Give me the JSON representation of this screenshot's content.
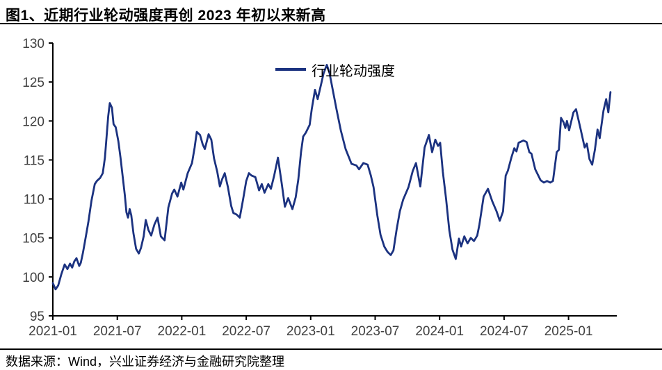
{
  "title": "图1、近期行业轮动强度再创 2023 年初以来新高",
  "source_note": "数据来源：Wind，兴业证券经济与金融研究院整理",
  "colors": {
    "series_line": "#1B3280",
    "axis": "#000000",
    "axis_label": "#404040",
    "divider": "#000000"
  },
  "chart_data": {
    "type": "line",
    "title": "",
    "xlabel": "",
    "ylabel": "",
    "legend_position": "top-center",
    "grid": false,
    "ylim": [
      95,
      130
    ],
    "y_ticks": [
      95,
      100,
      105,
      110,
      115,
      120,
      125,
      130
    ],
    "x_unit": "months_since_2021_01",
    "xlim": [
      0,
      52.5
    ],
    "x_ticks": [
      {
        "m": 0,
        "label": "2021-01"
      },
      {
        "m": 6,
        "label": "2021-07"
      },
      {
        "m": 12,
        "label": "2022-01"
      },
      {
        "m": 18,
        "label": "2022-07"
      },
      {
        "m": 24,
        "label": "2023-01"
      },
      {
        "m": 30,
        "label": "2023-07"
      },
      {
        "m": 36,
        "label": "2024-01"
      },
      {
        "m": 42,
        "label": "2024-07"
      },
      {
        "m": 48,
        "label": "2025-01"
      }
    ],
    "series": [
      {
        "name": "行业轮动强度",
        "color": "#1B3280",
        "points": [
          [
            0,
            99.2
          ],
          [
            0.25,
            98.4
          ],
          [
            0.5,
            98.9
          ],
          [
            0.8,
            100.4
          ],
          [
            1.1,
            101.6
          ],
          [
            1.35,
            101.0
          ],
          [
            1.6,
            101.7
          ],
          [
            1.8,
            101.2
          ],
          [
            2.0,
            102.0
          ],
          [
            2.2,
            102.4
          ],
          [
            2.45,
            101.4
          ],
          [
            2.6,
            101.8
          ],
          [
            2.8,
            103.1
          ],
          [
            3.0,
            104.6
          ],
          [
            3.3,
            107.0
          ],
          [
            3.6,
            109.8
          ],
          [
            3.9,
            111.9
          ],
          [
            4.1,
            112.3
          ],
          [
            4.4,
            112.7
          ],
          [
            4.65,
            113.3
          ],
          [
            4.85,
            115.3
          ],
          [
            5.0,
            118.0
          ],
          [
            5.15,
            120.6
          ],
          [
            5.3,
            122.3
          ],
          [
            5.5,
            121.7
          ],
          [
            5.65,
            119.6
          ],
          [
            5.85,
            119.2
          ],
          [
            6.1,
            117.4
          ],
          [
            6.3,
            115.3
          ],
          [
            6.5,
            112.9
          ],
          [
            6.7,
            110.5
          ],
          [
            6.85,
            108.3
          ],
          [
            7.0,
            107.6
          ],
          [
            7.15,
            108.7
          ],
          [
            7.3,
            107.9
          ],
          [
            7.5,
            105.6
          ],
          [
            7.75,
            103.6
          ],
          [
            8.0,
            103.0
          ],
          [
            8.2,
            103.7
          ],
          [
            8.45,
            105.2
          ],
          [
            8.65,
            107.3
          ],
          [
            8.9,
            106.0
          ],
          [
            9.15,
            105.3
          ],
          [
            9.45,
            106.7
          ],
          [
            9.75,
            107.6
          ],
          [
            10.05,
            105.2
          ],
          [
            10.4,
            104.7
          ],
          [
            10.75,
            108.9
          ],
          [
            11.1,
            110.7
          ],
          [
            11.3,
            111.2
          ],
          [
            11.6,
            110.3
          ],
          [
            11.95,
            112.1
          ],
          [
            12.15,
            111.2
          ],
          [
            12.55,
            113.3
          ],
          [
            12.95,
            114.6
          ],
          [
            13.2,
            116.6
          ],
          [
            13.4,
            118.6
          ],
          [
            13.7,
            118.2
          ],
          [
            13.95,
            117.0
          ],
          [
            14.15,
            116.4
          ],
          [
            14.5,
            118.3
          ],
          [
            14.75,
            117.6
          ],
          [
            15.0,
            115.2
          ],
          [
            15.3,
            113.5
          ],
          [
            15.55,
            111.6
          ],
          [
            15.75,
            112.5
          ],
          [
            16.0,
            113.3
          ],
          [
            16.3,
            111.5
          ],
          [
            16.6,
            109.1
          ],
          [
            16.8,
            108.2
          ],
          [
            17.1,
            108.0
          ],
          [
            17.4,
            107.6
          ],
          [
            17.7,
            109.9
          ],
          [
            18.0,
            112.3
          ],
          [
            18.25,
            113.3
          ],
          [
            18.5,
            113.0
          ],
          [
            18.85,
            112.8
          ],
          [
            19.2,
            111.1
          ],
          [
            19.45,
            111.9
          ],
          [
            19.7,
            110.8
          ],
          [
            20.05,
            111.9
          ],
          [
            20.3,
            111.3
          ],
          [
            20.6,
            113.0
          ],
          [
            20.95,
            115.3
          ],
          [
            21.3,
            112.0
          ],
          [
            21.6,
            109.0
          ],
          [
            21.9,
            110.1
          ],
          [
            22.3,
            108.7
          ],
          [
            22.6,
            110.2
          ],
          [
            22.85,
            112.5
          ],
          [
            23.1,
            116.0
          ],
          [
            23.3,
            118.0
          ],
          [
            23.55,
            118.5
          ],
          [
            23.9,
            119.5
          ],
          [
            24.1,
            121.5
          ],
          [
            24.4,
            124.0
          ],
          [
            24.65,
            122.8
          ],
          [
            24.95,
            124.6
          ],
          [
            25.2,
            126.1
          ],
          [
            25.5,
            127.2
          ],
          [
            25.75,
            126.2
          ],
          [
            26.05,
            124.0
          ],
          [
            26.4,
            121.5
          ],
          [
            26.8,
            118.8
          ],
          [
            27.25,
            116.4
          ],
          [
            27.8,
            114.5
          ],
          [
            28.25,
            114.3
          ],
          [
            28.5,
            113.8
          ],
          [
            28.9,
            114.6
          ],
          [
            29.3,
            114.4
          ],
          [
            29.6,
            113.0
          ],
          [
            29.85,
            111.5
          ],
          [
            30.2,
            107.9
          ],
          [
            30.5,
            105.4
          ],
          [
            30.85,
            103.9
          ],
          [
            31.15,
            103.2
          ],
          [
            31.45,
            102.8
          ],
          [
            31.7,
            103.4
          ],
          [
            32.0,
            106.1
          ],
          [
            32.3,
            108.4
          ],
          [
            32.6,
            109.9
          ],
          [
            33.1,
            111.5
          ],
          [
            33.5,
            113.6
          ],
          [
            33.8,
            114.6
          ],
          [
            34.2,
            111.6
          ],
          [
            34.6,
            116.6
          ],
          [
            35.0,
            118.2
          ],
          [
            35.3,
            116.0
          ],
          [
            35.6,
            117.6
          ],
          [
            35.85,
            116.8
          ],
          [
            36.05,
            117.2
          ],
          [
            36.3,
            113.5
          ],
          [
            36.6,
            110.0
          ],
          [
            36.9,
            106.0
          ],
          [
            37.2,
            103.5
          ],
          [
            37.5,
            102.3
          ],
          [
            37.8,
            104.9
          ],
          [
            38.0,
            103.9
          ],
          [
            38.3,
            105.2
          ],
          [
            38.6,
            104.3
          ],
          [
            38.9,
            105.0
          ],
          [
            39.2,
            104.6
          ],
          [
            39.5,
            105.3
          ],
          [
            39.7,
            106.7
          ],
          [
            40.1,
            110.3
          ],
          [
            40.5,
            111.3
          ],
          [
            40.9,
            109.7
          ],
          [
            41.3,
            108.4
          ],
          [
            41.6,
            107.2
          ],
          [
            41.9,
            108.4
          ],
          [
            42.15,
            113.0
          ],
          [
            42.35,
            113.6
          ],
          [
            42.7,
            115.4
          ],
          [
            42.95,
            116.5
          ],
          [
            43.15,
            116.1
          ],
          [
            43.35,
            117.2
          ],
          [
            43.8,
            117.5
          ],
          [
            44.1,
            117.3
          ],
          [
            44.35,
            116.0
          ],
          [
            44.55,
            115.8
          ],
          [
            44.9,
            113.8
          ],
          [
            45.4,
            112.4
          ],
          [
            45.7,
            112.1
          ],
          [
            46.0,
            112.3
          ],
          [
            46.3,
            112.1
          ],
          [
            46.55,
            112.3
          ],
          [
            46.9,
            116.0
          ],
          [
            47.1,
            116.3
          ],
          [
            47.3,
            120.4
          ],
          [
            47.55,
            119.8
          ],
          [
            47.7,
            119.1
          ],
          [
            47.85,
            120.0
          ],
          [
            48.05,
            118.8
          ],
          [
            48.45,
            121.1
          ],
          [
            48.7,
            121.5
          ],
          [
            49.1,
            119.1
          ],
          [
            49.5,
            116.6
          ],
          [
            49.7,
            117.1
          ],
          [
            49.95,
            115.1
          ],
          [
            50.2,
            114.4
          ],
          [
            50.45,
            116.3
          ],
          [
            50.7,
            118.9
          ],
          [
            50.9,
            117.8
          ],
          [
            51.25,
            121.3
          ],
          [
            51.5,
            122.8
          ],
          [
            51.7,
            121.1
          ],
          [
            51.9,
            123.7
          ]
        ]
      }
    ]
  }
}
